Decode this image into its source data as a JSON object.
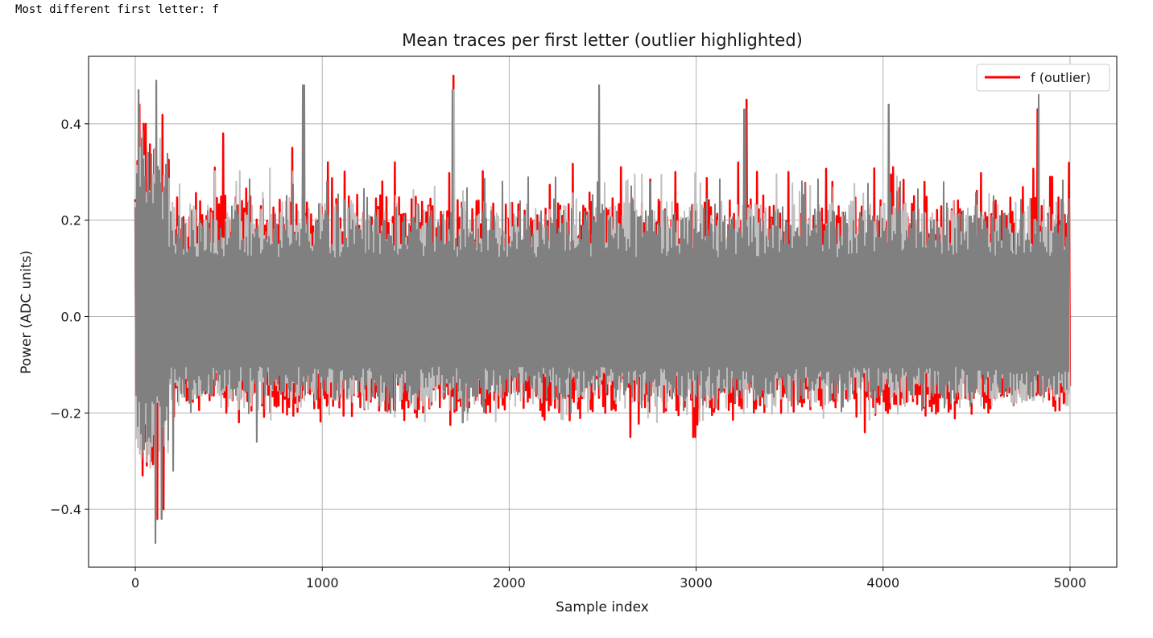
{
  "output": {
    "text": "Most different first letter: f"
  },
  "chart_data": {
    "type": "line",
    "title": "Mean traces per first letter (outlier highlighted)",
    "xlabel": "Sample index",
    "ylabel": "Power (ADC units)",
    "xlim": [
      -250,
      5250
    ],
    "ylim": [
      -0.52,
      0.54
    ],
    "x_ticks": [
      0,
      1000,
      2000,
      3000,
      4000,
      5000
    ],
    "x_tick_labels": [
      "0",
      "1000",
      "2000",
      "3000",
      "4000",
      "5000"
    ],
    "y_ticks": [
      0.4,
      0.2,
      0.0,
      -0.2,
      -0.4
    ],
    "y_tick_labels": [
      "0.4",
      "0.2",
      "0.0",
      "−0.2",
      "−0.4"
    ],
    "grid": true,
    "legend": {
      "placement": "top-right",
      "entries": [
        {
          "label": "f (outlier)",
          "color": "#ff0000"
        }
      ]
    },
    "series": [
      {
        "name": "f (outlier)",
        "color": "#ff0000",
        "role": "highlighted",
        "x_range": [
          0,
          5000
        ],
        "typical_band": [
          -0.2,
          0.25
        ],
        "peaks": [
          [
            25,
            0.44
          ],
          [
            50,
            0.4
          ],
          [
            470,
            0.38
          ],
          [
            840,
            0.35
          ],
          [
            1030,
            0.32
          ],
          [
            1390,
            0.32
          ],
          [
            1700,
            0.5
          ],
          [
            2600,
            0.31
          ],
          [
            2890,
            0.3
          ],
          [
            3270,
            0.45
          ],
          [
            4050,
            0.31
          ],
          [
            4830,
            0.43
          ],
          [
            4900,
            0.29
          ]
        ],
        "troughs": [
          [
            35,
            -0.33
          ],
          [
            80,
            -0.3
          ],
          [
            120,
            -0.42
          ],
          [
            155,
            -0.4
          ],
          [
            2650,
            -0.25
          ],
          [
            2990,
            -0.25
          ],
          [
            3900,
            -0.24
          ]
        ]
      },
      {
        "name": "",
        "color": "#808080",
        "role": "other letters",
        "x_range": [
          0,
          5000
        ],
        "typical_band": [
          -0.19,
          0.24
        ],
        "peaks": [
          [
            20,
            0.47
          ],
          [
            110,
            0.49
          ],
          [
            900,
            0.48
          ],
          [
            1700,
            0.47
          ],
          [
            2480,
            0.48
          ],
          [
            3260,
            0.43
          ],
          [
            4030,
            0.44
          ],
          [
            4830,
            0.46
          ]
        ],
        "troughs": [
          [
            40,
            -0.28
          ],
          [
            110,
            -0.47
          ],
          [
            140,
            -0.42
          ],
          [
            200,
            -0.32
          ],
          [
            650,
            -0.26
          ],
          [
            1750,
            -0.22
          ]
        ]
      }
    ]
  }
}
